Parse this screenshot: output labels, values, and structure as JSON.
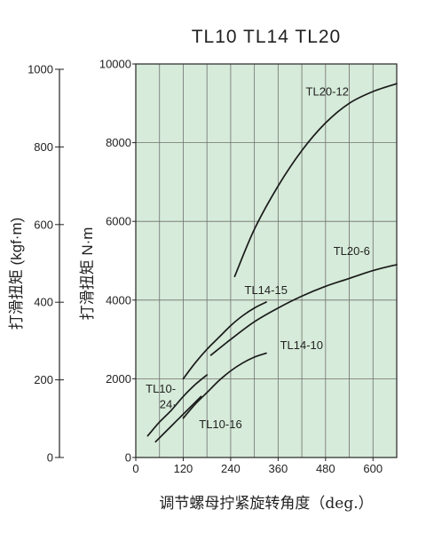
{
  "chart_data": {
    "type": "line",
    "title": "TL10   TL14   TL20",
    "xlabel": "调节螺母拧紧旋转角度（deg.）",
    "ylabel_nm": "打滑扭矩  N·m",
    "ylabel_kgf": "打滑扭矩 (kgf·m)",
    "xlim": [
      0,
      660
    ],
    "ylim": [
      0,
      10000
    ],
    "ylim_kgf": [
      0,
      1000
    ],
    "x_ticks": [
      0,
      120,
      240,
      360,
      480,
      600
    ],
    "x_tick_labels": [
      "0",
      "120",
      "240",
      "360",
      "480",
      "600"
    ],
    "y_ticks": [
      0,
      2000,
      4000,
      6000,
      8000,
      10000
    ],
    "y_tick_labels": [
      "0",
      "2000",
      "4000",
      "6000",
      "8000",
      "10000"
    ],
    "y_ticks_kgf": [
      0,
      200,
      400,
      600,
      800,
      1000
    ],
    "y_tick_labels_kgf": [
      "0",
      "200",
      "400",
      "600",
      "800",
      "1000"
    ],
    "x_gridlines": [
      60,
      120,
      180,
      240,
      300,
      360,
      420,
      480,
      540,
      600
    ],
    "y_gridlines": [
      2000,
      4000,
      6000,
      8000
    ],
    "grid": true,
    "plot_background": "#d6ebd9",
    "grid_color": "#707070",
    "line_color": "#1a1a1a",
    "series": [
      {
        "name": "TL20-12",
        "points": [
          [
            250,
            4600
          ],
          [
            300,
            5800
          ],
          [
            360,
            6900
          ],
          [
            420,
            7800
          ],
          [
            480,
            8500
          ],
          [
            540,
            9000
          ],
          [
            600,
            9300
          ],
          [
            660,
            9500
          ]
        ]
      },
      {
        "name": "TL20-6",
        "points": [
          [
            190,
            2600
          ],
          [
            240,
            3000
          ],
          [
            300,
            3450
          ],
          [
            360,
            3800
          ],
          [
            420,
            4100
          ],
          [
            480,
            4350
          ],
          [
            540,
            4550
          ],
          [
            600,
            4750
          ],
          [
            660,
            4900
          ]
        ]
      },
      {
        "name": "TL14-15",
        "points": [
          [
            120,
            2000
          ],
          [
            150,
            2400
          ],
          [
            180,
            2750
          ],
          [
            210,
            3050
          ],
          [
            240,
            3350
          ],
          [
            270,
            3600
          ],
          [
            300,
            3800
          ],
          [
            330,
            3950
          ]
        ]
      },
      {
        "name": "TL14-10",
        "points": [
          [
            120,
            1000
          ],
          [
            150,
            1350
          ],
          [
            180,
            1650
          ],
          [
            210,
            1950
          ],
          [
            240,
            2200
          ],
          [
            270,
            2400
          ],
          [
            300,
            2550
          ],
          [
            330,
            2650
          ]
        ]
      },
      {
        "name": "TL10-24",
        "points": [
          [
            30,
            550
          ],
          [
            60,
            900
          ],
          [
            90,
            1200
          ],
          [
            120,
            1550
          ],
          [
            150,
            1850
          ],
          [
            180,
            2100
          ]
        ]
      },
      {
        "name": "TL10-16",
        "points": [
          [
            50,
            400
          ],
          [
            80,
            700
          ],
          [
            110,
            1000
          ],
          [
            140,
            1300
          ],
          [
            165,
            1550
          ]
        ]
      }
    ],
    "curve_labels": [
      {
        "text": "TL20-12",
        "x": 430,
        "y": 9200
      },
      {
        "text": "TL20-6",
        "x": 500,
        "y": 5150
      },
      {
        "text": "TL14-15",
        "x": 275,
        "y": 4150
      },
      {
        "text": "TL14-10",
        "x": 365,
        "y": 2750
      },
      {
        "text": "TL10-",
        "x": 25,
        "y": 1650
      },
      {
        "text": "24·",
        "x": 60,
        "y": 1250
      },
      {
        "text": "TL10-16",
        "x": 160,
        "y": 750
      }
    ]
  }
}
